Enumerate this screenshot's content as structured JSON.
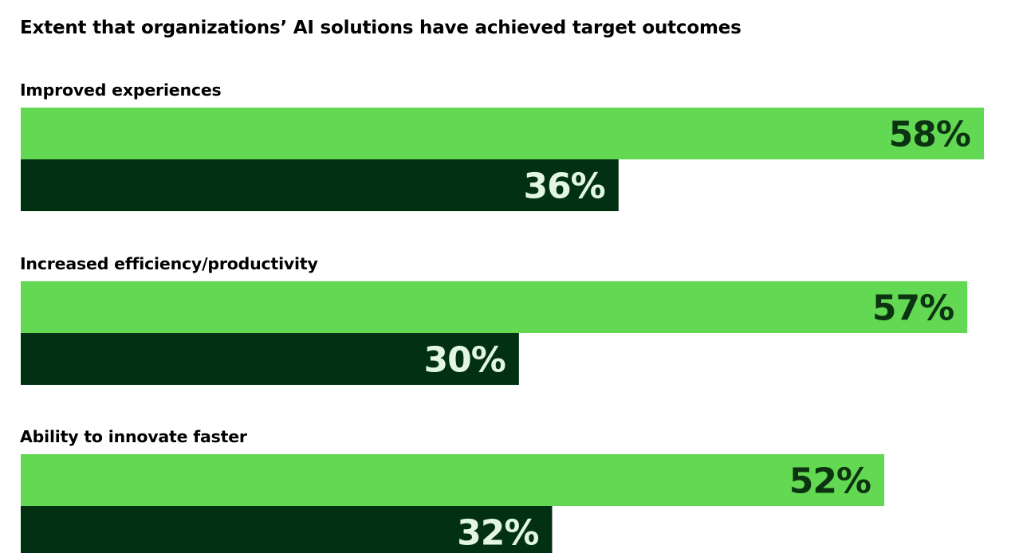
{
  "chart_data": {
    "type": "bar",
    "orientation": "horizontal",
    "title": "Extent that organizations’ AI solutions have achieved target outcomes",
    "categories": [
      "Improved experiences",
      "Increased efficiency/productivity",
      "Ability to innovate faster"
    ],
    "series": [
      {
        "name": "series-1",
        "values": [
          58,
          57,
          52
        ],
        "value_labels": [
          "58%",
          "57%",
          "52%"
        ]
      },
      {
        "name": "series-2",
        "values": [
          36,
          30,
          32
        ],
        "value_labels": [
          "36%",
          "30%",
          "32%"
        ]
      }
    ],
    "xlim": [
      0,
      58
    ],
    "legend": "none",
    "grid": false
  },
  "colors": {
    "series_1_bar": "#63d852",
    "series_1_label": "#0b3311",
    "series_2_bar": "#013112",
    "series_2_label": "#e3f6e1",
    "text": "#000000"
  }
}
